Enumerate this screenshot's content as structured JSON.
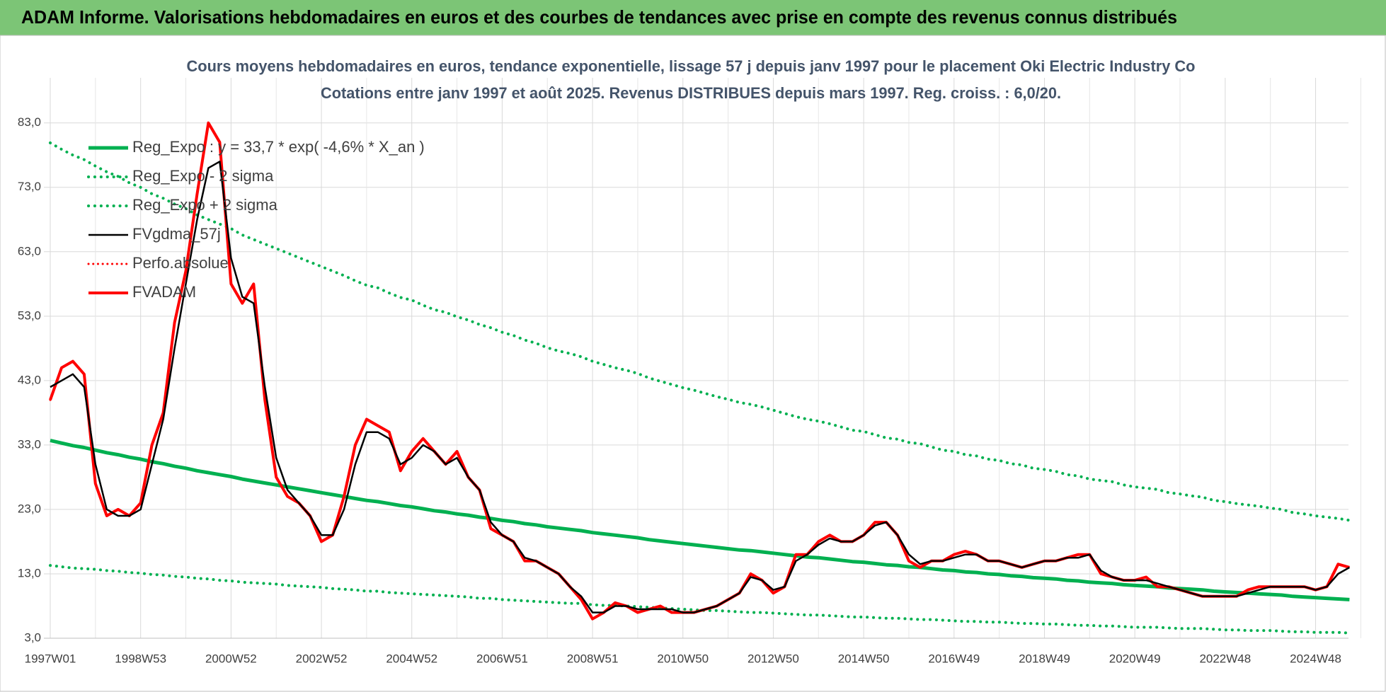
{
  "header": {
    "title": "ADAM Informe. Valorisations hebdomadaires en euros et des courbes de tendances avec prise en compte des revenus connus distribués"
  },
  "chart_data": {
    "type": "line",
    "title": "Cours moyens hebdomadaires en euros, tendance exponentielle, lissage 57 j depuis janv 1997 pour le placement Oki Electric Industry Co",
    "subtitle": "Cotations entre janv 1997 et août 2025.  Revenus DISTRIBUES depuis mars 1997. Reg. croiss. : 6,0/20.",
    "legend": "upper left",
    "grid": true,
    "ylim": [
      3,
      90
    ],
    "yticks": [
      {
        "value": 3,
        "label": "3,0"
      },
      {
        "value": 13,
        "label": "13,0"
      },
      {
        "value": 23,
        "label": "23,0"
      },
      {
        "value": 33,
        "label": "33,0"
      },
      {
        "value": 43,
        "label": "43,0"
      },
      {
        "value": 53,
        "label": "53,0"
      },
      {
        "value": 63,
        "label": "63,0"
      },
      {
        "value": 73,
        "label": "73,0"
      },
      {
        "value": 83,
        "label": "83,0"
      }
    ],
    "categories": [
      "1997W01",
      null,
      null,
      null,
      null,
      null,
      null,
      null,
      "1998W53",
      null,
      null,
      null,
      null,
      null,
      null,
      null,
      "2000W52",
      null,
      null,
      null,
      null,
      null,
      null,
      null,
      "2002W52",
      null,
      null,
      null,
      null,
      null,
      null,
      null,
      "2004W52",
      null,
      null,
      null,
      null,
      null,
      null,
      null,
      "2006W51",
      null,
      null,
      null,
      null,
      null,
      null,
      null,
      "2008W51",
      null,
      null,
      null,
      null,
      null,
      null,
      null,
      "2010W50",
      null,
      null,
      null,
      null,
      null,
      null,
      null,
      "2012W50",
      null,
      null,
      null,
      null,
      null,
      null,
      null,
      "2014W50",
      null,
      null,
      null,
      null,
      null,
      null,
      null,
      "2016W49",
      null,
      null,
      null,
      null,
      null,
      null,
      null,
      "2018W49",
      null,
      null,
      null,
      null,
      null,
      null,
      null,
      "2020W49",
      null,
      null,
      null,
      null,
      null,
      null,
      null,
      "2022W48",
      null,
      null,
      null,
      null,
      null,
      null,
      null,
      "2024W48",
      null,
      null,
      null
    ],
    "series": [
      {
        "name": "Reg_Expo : y = 33,7 * exp( -4,6% *  X_an )",
        "color": "#00b050",
        "style": "solid",
        "width": 5,
        "values": [
          33.7,
          33.3,
          32.9,
          32.6,
          32.2,
          31.8,
          31.5,
          31.1,
          30.8,
          30.4,
          30.1,
          29.7,
          29.4,
          29.0,
          28.7,
          28.4,
          28.1,
          27.7,
          27.4,
          27.1,
          26.8,
          26.5,
          26.2,
          25.9,
          25.6,
          25.3,
          25.0,
          24.7,
          24.4,
          24.2,
          23.9,
          23.6,
          23.4,
          23.1,
          22.8,
          22.6,
          22.3,
          22.1,
          21.8,
          21.6,
          21.3,
          21.1,
          20.8,
          20.6,
          20.3,
          20.1,
          19.9,
          19.7,
          19.4,
          19.2,
          19.0,
          18.8,
          18.6,
          18.3,
          18.1,
          17.9,
          17.7,
          17.5,
          17.3,
          17.1,
          16.9,
          16.7,
          16.6,
          16.4,
          16.2,
          16.0,
          15.8,
          15.6,
          15.5,
          15.3,
          15.1,
          14.9,
          14.8,
          14.6,
          14.4,
          14.3,
          14.1,
          14.0,
          13.8,
          13.6,
          13.5,
          13.3,
          13.2,
          13.0,
          12.9,
          12.7,
          12.6,
          12.4,
          12.3,
          12.2,
          12.0,
          11.9,
          11.7,
          11.6,
          11.5,
          11.3,
          11.2,
          11.1,
          11.0,
          10.8,
          10.7,
          10.6,
          10.5,
          10.3,
          10.2,
          10.1,
          10.0,
          9.9,
          9.8,
          9.7,
          9.5,
          9.4,
          9.3,
          9.2,
          9.1,
          9.0
        ]
      },
      {
        "name": "Reg_Expo - 2 sigma",
        "color": "#00b050",
        "style": "dotted",
        "width": 4,
        "values": [
          14.3,
          14.1,
          13.9,
          13.8,
          13.7,
          13.5,
          13.4,
          13.2,
          13.1,
          12.9,
          12.8,
          12.6,
          12.5,
          12.3,
          12.2,
          12.0,
          11.9,
          11.7,
          11.6,
          11.5,
          11.4,
          11.2,
          11.1,
          11.0,
          10.9,
          10.7,
          10.6,
          10.5,
          10.3,
          10.3,
          10.1,
          10.0,
          9.9,
          9.8,
          9.7,
          9.6,
          9.5,
          9.4,
          9.2,
          9.2,
          9.0,
          8.9,
          8.8,
          8.7,
          8.6,
          8.5,
          8.4,
          8.4,
          8.2,
          8.1,
          8.1,
          8.0,
          7.9,
          7.8,
          7.7,
          7.6,
          7.5,
          7.4,
          7.3,
          7.3,
          7.2,
          7.1,
          7.0,
          7.0,
          6.9,
          6.8,
          6.7,
          6.6,
          6.6,
          6.5,
          6.4,
          6.3,
          6.3,
          6.2,
          6.1,
          6.1,
          6.0,
          5.9,
          5.9,
          5.8,
          5.7,
          5.6,
          5.6,
          5.5,
          5.5,
          5.4,
          5.3,
          5.3,
          5.2,
          5.2,
          5.1,
          5.0,
          5.0,
          4.9,
          4.9,
          4.8,
          4.7,
          4.7,
          4.7,
          4.6,
          4.5,
          4.5,
          4.5,
          4.4,
          4.3,
          4.3,
          4.2,
          4.2,
          4.2,
          4.1,
          4.0,
          4.0,
          3.9,
          3.9,
          3.9,
          3.8
        ]
      },
      {
        "name": "Reg_Expo + 2 sigma",
        "color": "#00b050",
        "style": "dotted",
        "width": 4,
        "values": [
          79.9,
          78.9,
          78.0,
          77.3,
          76.3,
          75.4,
          74.7,
          73.7,
          73.0,
          72.0,
          71.3,
          70.4,
          69.7,
          68.7,
          68.0,
          67.3,
          66.6,
          65.6,
          64.9,
          64.2,
          63.5,
          62.8,
          62.1,
          61.4,
          60.7,
          60.0,
          59.3,
          58.5,
          57.8,
          57.4,
          56.6,
          55.9,
          55.5,
          54.7,
          54.0,
          53.6,
          52.9,
          52.4,
          51.7,
          51.2,
          50.5,
          50.0,
          49.3,
          48.8,
          48.1,
          47.6,
          47.2,
          46.7,
          46.0,
          45.5,
          45.0,
          44.6,
          44.1,
          43.4,
          42.9,
          42.4,
          41.9,
          41.5,
          41.0,
          40.5,
          40.1,
          39.6,
          39.3,
          38.9,
          38.4,
          37.9,
          37.4,
          37.0,
          36.7,
          36.3,
          35.8,
          35.3,
          35.1,
          34.6,
          34.1,
          33.9,
          33.4,
          33.2,
          32.7,
          32.2,
          32.0,
          31.5,
          31.3,
          30.8,
          30.6,
          30.1,
          29.9,
          29.4,
          29.2,
          28.9,
          28.4,
          28.2,
          27.7,
          27.5,
          27.3,
          26.8,
          26.5,
          26.3,
          26.1,
          25.6,
          25.4,
          25.1,
          24.9,
          24.4,
          24.2,
          23.9,
          23.7,
          23.5,
          23.2,
          23.0,
          22.5,
          22.3,
          22.0,
          21.8,
          21.6,
          21.3
        ]
      },
      {
        "name": "FVgdma_57j",
        "color": "#000000",
        "style": "solid",
        "width": 2.5,
        "values": [
          42,
          43,
          44,
          42,
          30,
          23,
          22,
          22,
          23,
          30,
          37,
          48,
          58,
          68,
          76,
          77,
          62,
          56,
          55,
          42,
          31,
          26,
          24,
          22,
          19,
          19,
          23,
          30,
          35,
          35,
          34,
          30,
          31,
          33,
          32,
          30,
          31,
          28,
          26,
          21,
          19,
          18,
          15.5,
          15,
          14,
          13,
          11,
          9.5,
          7,
          7,
          8,
          8,
          7.5,
          7.5,
          7.5,
          7.5,
          7,
          7,
          7.5,
          8,
          9,
          10,
          12.5,
          12,
          10.5,
          11,
          15,
          16,
          17.5,
          18.5,
          18,
          18,
          19,
          20.5,
          21,
          19,
          16,
          14.5,
          15,
          15,
          15.5,
          16,
          16,
          15,
          15,
          14.5,
          14,
          14.5,
          15,
          15,
          15.5,
          15.5,
          16,
          13.5,
          12.5,
          12,
          12,
          12,
          11.5,
          11,
          10.5,
          10,
          9.5,
          9.5,
          9.5,
          9.5,
          10,
          10.5,
          11,
          11,
          11,
          11,
          10.5,
          11,
          13,
          14
        ]
      },
      {
        "name": "Perfo.absolue",
        "color": "#ff0000",
        "style": "dotted",
        "width": 3,
        "values": [
          40,
          45,
          46,
          44,
          27,
          22,
          23,
          22,
          24,
          33,
          38,
          52,
          60,
          72,
          83,
          80,
          58,
          55,
          58,
          40,
          28,
          25,
          24,
          22,
          18,
          19,
          25,
          33,
          37,
          36,
          35,
          29,
          32,
          34,
          32,
          30,
          32,
          28,
          26,
          20,
          19,
          18,
          15,
          15,
          14,
          13,
          11,
          9,
          6,
          7,
          8.5,
          8,
          7,
          7.5,
          8,
          7,
          7,
          7,
          7.5,
          8,
          9,
          10,
          13,
          12,
          10,
          11,
          16,
          16,
          18,
          19,
          18,
          18,
          19,
          21,
          21,
          19,
          15,
          14,
          15,
          15,
          16,
          16.5,
          16,
          15,
          15,
          14.5,
          14,
          14.5,
          15,
          15,
          15.5,
          16,
          16,
          13,
          12.5,
          12,
          12,
          12.5,
          11,
          11,
          10.5,
          10,
          9.5,
          9.5,
          9.5,
          9.5,
          10.5,
          11,
          11,
          11,
          11,
          11,
          10.5,
          11,
          14.5,
          14
        ]
      },
      {
        "name": "FVADAM",
        "color": "#ff0000",
        "style": "solid",
        "width": 4,
        "values": [
          40,
          45,
          46,
          44,
          27,
          22,
          23,
          22,
          24,
          33,
          38,
          52,
          60,
          72,
          83,
          80,
          58,
          55,
          58,
          40,
          28,
          25,
          24,
          22,
          18,
          19,
          25,
          33,
          37,
          36,
          35,
          29,
          32,
          34,
          32,
          30,
          32,
          28,
          26,
          20,
          19,
          18,
          15,
          15,
          14,
          13,
          11,
          9,
          6,
          7,
          8.5,
          8,
          7,
          7.5,
          8,
          7,
          7,
          7,
          7.5,
          8,
          9,
          10,
          13,
          12,
          10,
          11,
          16,
          16,
          18,
          19,
          18,
          18,
          19,
          21,
          21,
          19,
          15,
          14,
          15,
          15,
          16,
          16.5,
          16,
          15,
          15,
          14.5,
          14,
          14.5,
          15,
          15,
          15.5,
          16,
          16,
          13,
          12.5,
          12,
          12,
          12.5,
          11,
          11,
          10.5,
          10,
          9.5,
          9.5,
          9.5,
          9.5,
          10.5,
          11,
          11,
          11,
          11,
          11,
          10.5,
          11,
          14.5,
          14
        ]
      }
    ]
  }
}
